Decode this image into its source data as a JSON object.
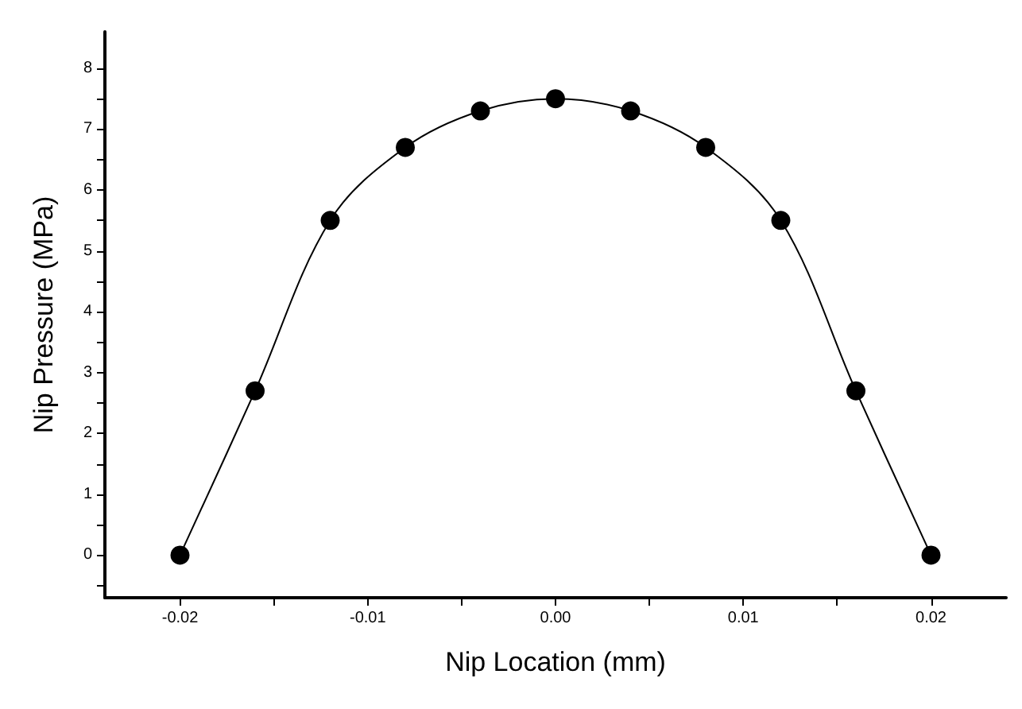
{
  "chart_data": {
    "type": "line",
    "xlabel": "Nip Location (mm)",
    "ylabel": "Nip Pressure (MPa)",
    "x": [
      -0.02,
      -0.016,
      -0.012,
      -0.008,
      -0.004,
      0,
      0.004,
      0.008,
      0.012,
      0.016,
      0.02
    ],
    "series": [
      {
        "color": "#000000",
        "values": [
          0,
          2.7,
          5.5,
          6.7,
          7.3,
          7.5,
          7.3,
          6.7,
          5.5,
          2.7,
          0
        ]
      }
    ],
    "xlim": [
      -0.024,
      0.024
    ],
    "xticks": [
      -0.02,
      {
        "value": -0.015,
        "label": null
      },
      -0.01,
      {
        "value": -0.005,
        "label": null
      },
      {
        "value": 0,
        "label": "0.00"
      },
      {
        "value": 0.005,
        "label": null
      },
      0.01,
      {
        "value": 0.015,
        "label": null
      },
      0.02
    ],
    "ylim": [
      -0.7,
      8.6
    ],
    "yticks": [
      {
        "value": -0.5,
        "label": null
      },
      0,
      {
        "value": 0.5,
        "label": null
      },
      1,
      {
        "value": 1.5,
        "label": null
      },
      2,
      {
        "value": 2.5,
        "label": null
      },
      3,
      {
        "value": 3.5,
        "label": null
      },
      4,
      {
        "value": 4.5,
        "label": null
      },
      5,
      {
        "value": 5.5,
        "label": null
      },
      6,
      {
        "value": 6.5,
        "label": null
      },
      7,
      {
        "value": 7.5,
        "label": null
      },
      8
    ],
    "marker": "circle"
  }
}
